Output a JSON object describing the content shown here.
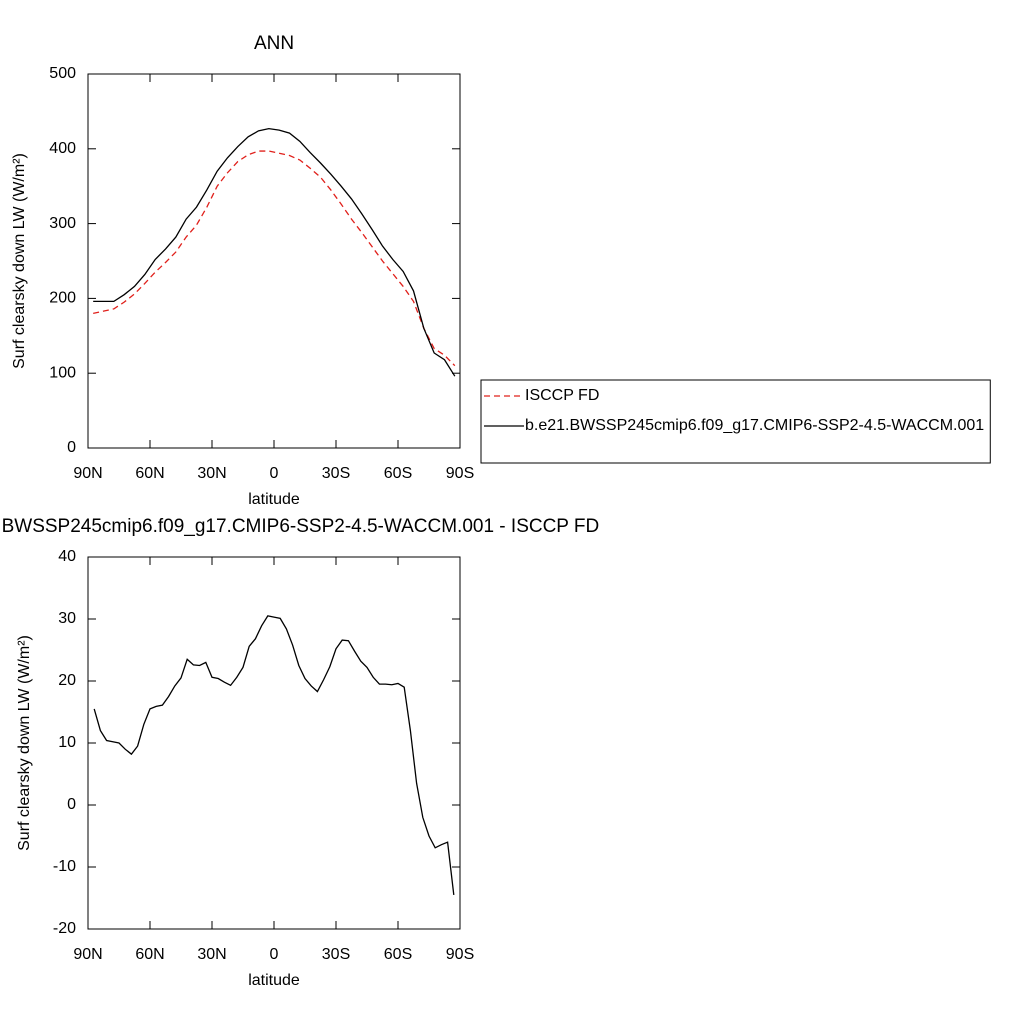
{
  "chart_data": [
    {
      "type": "line",
      "title": "ANN",
      "xlabel": "latitude",
      "ylabel": "Surf clearsky down LW (W/m²)",
      "x": [
        87.5,
        82.5,
        77.5,
        72.5,
        67.5,
        62.5,
        57.5,
        52.5,
        47.5,
        42.5,
        37.5,
        32.5,
        27.5,
        22.5,
        17.5,
        12.5,
        7.5,
        2.5,
        -2.5,
        -7.5,
        -12.5,
        -17.5,
        -22.5,
        -27.5,
        -32.5,
        -37.5,
        -42.5,
        -47.5,
        -52.5,
        -57.5,
        -62.5,
        -67.5,
        -72.5,
        -77.5,
        -82.5,
        -87.5
      ],
      "series": [
        {
          "name": "ISCCP FD",
          "color": "#e0201b",
          "style": "dashed",
          "values": [
            180,
            183,
            186,
            195,
            206,
            220,
            235,
            248,
            262,
            282,
            298,
            322,
            350,
            368,
            383,
            392,
            397,
            397,
            394,
            391,
            385,
            374,
            362,
            345,
            326,
            306,
            288,
            269,
            250,
            233,
            216,
            196,
            160,
            133,
            124,
            110
          ]
        },
        {
          "name": "b.e21.BWSSP245cmip6.f09_g17.CMIP6-SSP2-4.5-WACCM.001",
          "color": "#000000",
          "style": "solid",
          "values": [
            196,
            196,
            196,
            205,
            216,
            232,
            252,
            266,
            282,
            306,
            322,
            345,
            370,
            388,
            403,
            416,
            424,
            427,
            425,
            421,
            410,
            395,
            381,
            366,
            350,
            333,
            313,
            292,
            270,
            252,
            236,
            210,
            160,
            127,
            118,
            96
          ]
        }
      ],
      "xlim": [
        90,
        -90
      ],
      "xticks": [
        {
          "value": 90,
          "label": "90N"
        },
        {
          "value": 60,
          "label": "60N"
        },
        {
          "value": 30,
          "label": "30N"
        },
        0,
        {
          "value": -30,
          "label": "30S"
        },
        {
          "value": -60,
          "label": "60S"
        },
        {
          "value": -90,
          "label": "90S"
        }
      ],
      "ylim": [
        0,
        500
      ],
      "yticks": [
        0,
        100,
        200,
        300,
        400,
        500
      ],
      "legend": "right"
    },
    {
      "type": "line",
      "title": "b.e21.BWSSP245cmip6.f09_g17.CMIP6-SSP2-4.5-WACCM.001 - ISCCP FD",
      "xlabel": "latitude",
      "ylabel": "Surf clearsky down LW (W/m²)",
      "x": [
        87,
        84,
        81,
        78,
        75,
        72,
        69,
        66,
        63,
        60,
        57,
        54,
        51,
        48,
        45,
        42,
        39,
        36,
        33,
        30,
        27,
        24,
        21,
        18,
        15,
        12,
        9,
        6,
        3,
        0,
        -3,
        -6,
        -9,
        -12,
        -15,
        -18,
        -21,
        -24,
        -27,
        -30,
        -33,
        -36,
        -39,
        -42,
        -45,
        -48,
        -51,
        -54,
        -57,
        -60,
        -63,
        -66,
        -69,
        -72,
        -75,
        -78,
        -81,
        -84,
        -87
      ],
      "values": [
        15.5,
        12,
        10.4,
        10.2,
        10,
        9,
        8.2,
        9.5,
        13,
        15.5,
        15.9,
        16.1,
        17.5,
        19.2,
        20.5,
        23.5,
        22.6,
        22.5,
        23,
        20.6,
        20.4,
        19.8,
        19.3,
        20.6,
        22.2,
        25.6,
        26.8,
        28.9,
        30.5,
        30.3,
        30.1,
        28.4,
        25.8,
        22.5,
        20.4,
        19.2,
        18.3,
        20.2,
        22.3,
        25.2,
        26.6,
        26.5,
        24.8,
        23.2,
        22.2,
        20.6,
        19.5,
        19.5,
        19.4,
        19.6,
        19,
        12,
        3.5,
        -2,
        -5,
        -6.9,
        -6.4,
        -6,
        -14.5
      ],
      "color": "#000000",
      "xlim": [
        90,
        -90
      ],
      "xticks": [
        {
          "value": 90,
          "label": "90N"
        },
        {
          "value": 60,
          "label": "60N"
        },
        {
          "value": 30,
          "label": "30N"
        },
        0,
        {
          "value": -30,
          "label": "30S"
        },
        {
          "value": -60,
          "label": "60S"
        },
        {
          "value": -90,
          "label": "90S"
        }
      ],
      "ylim": [
        -20,
        40
      ],
      "yticks": [
        -20,
        -10,
        0,
        10,
        20,
        30,
        40
      ]
    }
  ]
}
